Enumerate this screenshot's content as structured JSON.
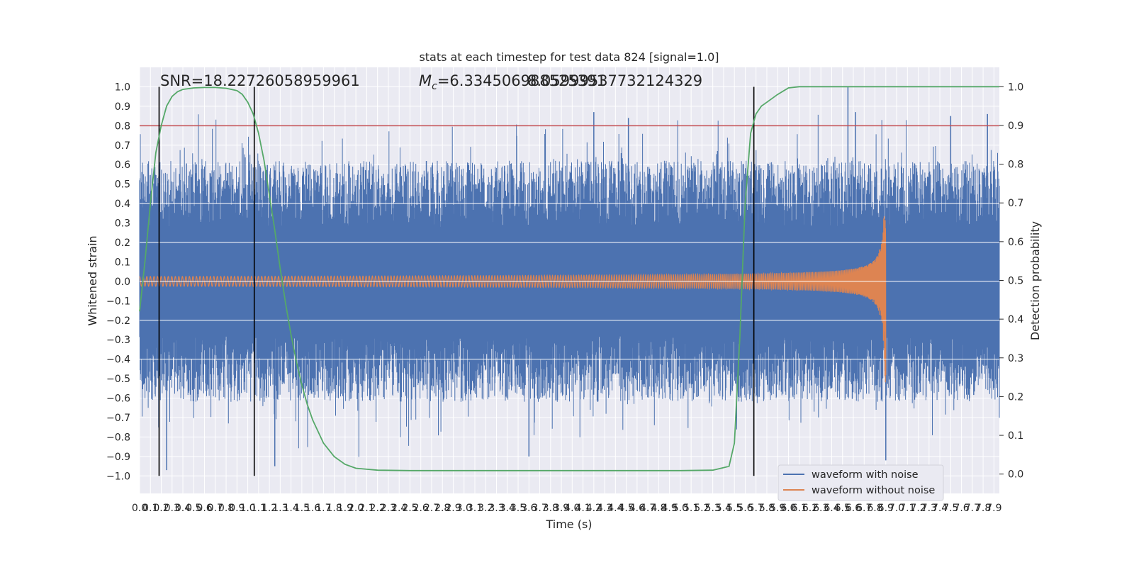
{
  "chart_data": {
    "type": "line",
    "title": "stats at each timestep for test data 824 [signal=1.0]",
    "xlabel": "Time (s)",
    "ylabel": "Whitened strain",
    "y2label": "Detection probability",
    "xlim": [
      0.0,
      7.95
    ],
    "ylim": [
      -1.09,
      1.1
    ],
    "y2lim": [
      -0.05,
      1.05
    ],
    "x_ticks": [
      "0.0",
      "0.1",
      "0.2",
      "0.3",
      "0.4",
      "0.5",
      "0.6",
      "0.7",
      "0.8",
      "0.9",
      "1.0",
      "1.1",
      "1.2",
      "1.3",
      "1.4",
      "1.5",
      "1.6",
      "1.7",
      "1.8",
      "1.9",
      "2.0",
      "2.1",
      "2.2",
      "2.3",
      "2.4",
      "2.5",
      "2.6",
      "2.7",
      "2.8",
      "2.9",
      "3.0",
      "3.1",
      "3.2",
      "3.3",
      "3.4",
      "3.5",
      "3.6",
      "3.7",
      "3.8",
      "3.9",
      "4.0",
      "4.1",
      "4.2",
      "4.3",
      "4.4",
      "4.5",
      "4.6",
      "4.7",
      "4.8",
      "4.9",
      "5.0",
      "5.1",
      "5.2",
      "5.3",
      "5.4",
      "5.5",
      "5.6",
      "5.7",
      "5.8",
      "5.9",
      "6.0",
      "6.1",
      "6.2",
      "6.3",
      "6.4",
      "6.5",
      "6.6",
      "6.7",
      "6.8",
      "6.9",
      "7.0",
      "7.1",
      "7.2",
      "7.3",
      "7.4",
      "7.5",
      "7.6",
      "7.7",
      "7.8",
      "7.9"
    ],
    "y_ticks": [
      "1.0",
      "0.9",
      "0.8",
      "0.7",
      "0.6",
      "0.5",
      "0.4",
      "0.3",
      "0.2",
      "0.1",
      "0.0",
      "−0.1",
      "−0.2",
      "−0.3",
      "−0.4",
      "−0.5",
      "−0.6",
      "−0.7",
      "−0.8",
      "−0.9",
      "−1.0"
    ],
    "y_tick_values": [
      1.0,
      0.9,
      0.8,
      0.7,
      0.6,
      0.5,
      0.4,
      0.3,
      0.2,
      0.1,
      0.0,
      -0.1,
      -0.2,
      -0.3,
      -0.4,
      -0.5,
      -0.6,
      -0.7,
      -0.8,
      -0.9,
      -1.0
    ],
    "y2_ticks": [
      "1.0",
      "0.9",
      "0.8",
      "0.7",
      "0.6",
      "0.5",
      "0.4",
      "0.3",
      "0.2",
      "0.1",
      "0.0"
    ],
    "y2_tick_values": [
      1.0,
      0.9,
      0.8,
      0.7,
      0.6,
      0.5,
      0.4,
      0.3,
      0.2,
      0.1,
      0.0
    ],
    "grid": true,
    "annotations": {
      "snr": "SNR=18.22726058959961",
      "mc_symbol": "M",
      "mc_sub": "c",
      "mc_value": "=6.334506988525391",
      "overlap_text": "8.05999537732124329"
    },
    "threshold": {
      "y": 0.8,
      "color": "#c44e52"
    },
    "vertical_lines_x": [
      0.18,
      1.06,
      5.68
    ],
    "series": [
      {
        "name": "waveform with noise",
        "color": "#4c72b0",
        "description_stats": {
          "envelope_low": 0.28,
          "envelope_high": 0.62,
          "peak_max": 1.0,
          "peak_min": -0.97,
          "x_end": 7.95
        }
      },
      {
        "name": "waveform without noise",
        "color": "#dd8452",
        "chirp": {
          "x_start": 0.0,
          "x_merge": 6.9,
          "amp_start": 0.025,
          "amp_peak": 0.52,
          "freq_start": 30
        }
      },
      {
        "name": "detection probability",
        "color": "#55a868",
        "axis": "right",
        "x": [
          0.0,
          0.05,
          0.1,
          0.15,
          0.2,
          0.25,
          0.3,
          0.35,
          0.4,
          0.5,
          0.6,
          0.7,
          0.8,
          0.9,
          0.95,
          1.0,
          1.05,
          1.1,
          1.15,
          1.2,
          1.25,
          1.3,
          1.35,
          1.4,
          1.45,
          1.5,
          1.55,
          1.6,
          1.7,
          1.8,
          1.9,
          2.0,
          2.2,
          2.5,
          3.0,
          3.5,
          4.0,
          4.5,
          5.0,
          5.3,
          5.45,
          5.5,
          5.55,
          5.6,
          5.65,
          5.7,
          5.75,
          5.8,
          5.9,
          6.0,
          6.1,
          6.2,
          6.3,
          6.5,
          7.0,
          7.5,
          7.95
        ],
        "y": [
          0.42,
          0.55,
          0.7,
          0.83,
          0.9,
          0.95,
          0.975,
          0.987,
          0.993,
          0.997,
          0.998,
          0.998,
          0.996,
          0.99,
          0.98,
          0.96,
          0.93,
          0.88,
          0.81,
          0.72,
          0.63,
          0.53,
          0.44,
          0.36,
          0.29,
          0.23,
          0.18,
          0.14,
          0.08,
          0.045,
          0.025,
          0.015,
          0.01,
          0.009,
          0.009,
          0.009,
          0.009,
          0.009,
          0.009,
          0.01,
          0.02,
          0.08,
          0.35,
          0.7,
          0.88,
          0.93,
          0.95,
          0.96,
          0.98,
          0.997,
          1.0,
          1.0,
          1.0,
          1.0,
          1.0,
          1.0,
          1.0
        ]
      }
    ],
    "legend": "bottom-right"
  }
}
